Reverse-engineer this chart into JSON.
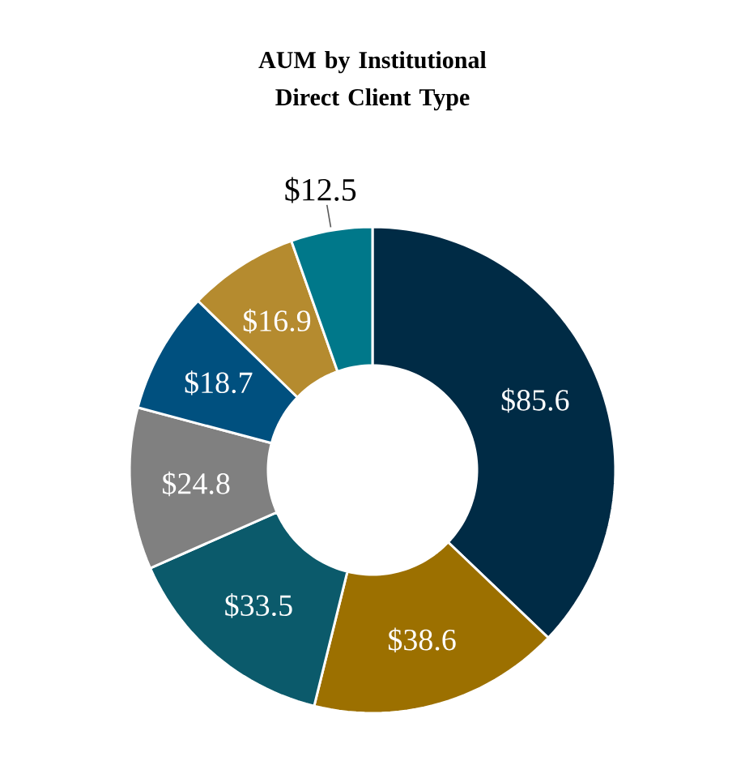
{
  "chart_data": {
    "type": "donut",
    "title": "AUM by Institutional Direct Client Type",
    "categories": [
      null,
      null,
      null,
      null,
      null,
      null,
      null
    ],
    "values": [
      85.6,
      38.6,
      33.5,
      24.8,
      18.7,
      16.9,
      12.5
    ],
    "value_labels": [
      "$85.6",
      "$38.6",
      "$33.5",
      "$24.8",
      "$18.7",
      "$16.9",
      "$12.5"
    ],
    "colors": [
      "#002b45",
      "#9c7000",
      "#0b5a6b",
      "#808080",
      "#00507f",
      "#b58b2f",
      "#00788a"
    ]
  }
}
